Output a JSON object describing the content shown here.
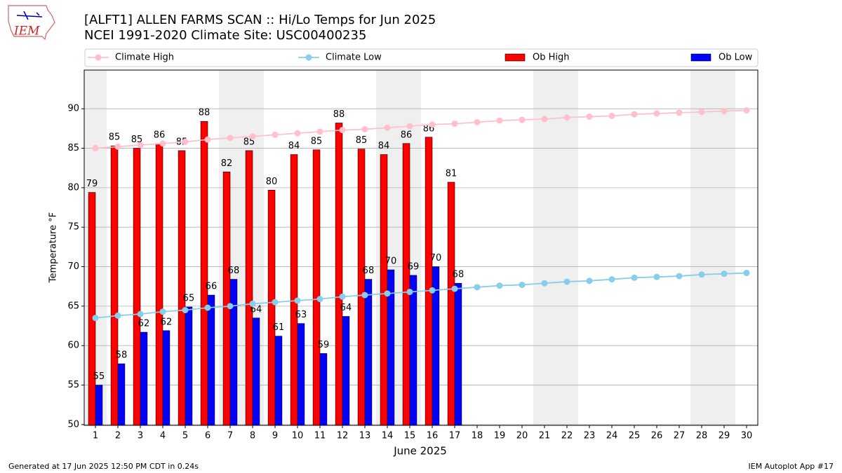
{
  "logo_text": "IEM",
  "footer_left": "Generated at 17 Jun 2025 12:50 PM CDT in 0.24s",
  "footer_right": "IEM Autoplot App #17",
  "chart_data": {
    "type": "bar_line",
    "title": "[ALFT1] ALLEN FARMS SCAN :: Hi/Lo Temps for Jun 2025",
    "subtitle": "NCEI 1991-2020 Climate Site: USC00400235",
    "xlabel": "June 2025",
    "ylabel": "Temperature °F",
    "x": [
      1,
      2,
      3,
      4,
      5,
      6,
      7,
      8,
      9,
      10,
      11,
      12,
      13,
      14,
      15,
      16,
      17,
      18,
      19,
      20,
      21,
      22,
      23,
      24,
      25,
      26,
      27,
      28,
      29,
      30
    ],
    "xlim": [
      0.5,
      30.5
    ],
    "xticks": [
      1,
      2,
      3,
      4,
      5,
      6,
      7,
      8,
      9,
      10,
      11,
      12,
      13,
      14,
      15,
      16,
      17,
      18,
      19,
      20,
      21,
      22,
      23,
      24,
      25,
      26,
      27,
      28,
      29,
      30
    ],
    "ylim": [
      49.9,
      94.9
    ],
    "yticks": [
      50,
      55,
      60,
      65,
      70,
      75,
      80,
      85,
      90
    ],
    "grid": true,
    "shaded_days": [
      1,
      7,
      8,
      14,
      15,
      21,
      22,
      28,
      29
    ],
    "shade_color": "#efefef",
    "series": [
      {
        "name": "Climate High",
        "kind": "line",
        "color": "pink",
        "values": [
          85.0,
          85.2,
          85.4,
          85.6,
          85.8,
          86.1,
          86.3,
          86.5,
          86.7,
          86.9,
          87.1,
          87.3,
          87.4,
          87.6,
          87.8,
          88.0,
          88.1,
          88.3,
          88.5,
          88.6,
          88.7,
          88.9,
          89.0,
          89.1,
          89.3,
          89.4,
          89.5,
          89.6,
          89.7,
          89.8
        ]
      },
      {
        "name": "Climate Low",
        "kind": "line",
        "color": "skyblue",
        "values": [
          63.5,
          63.8,
          64.0,
          64.3,
          64.5,
          64.8,
          65.0,
          65.3,
          65.5,
          65.7,
          65.9,
          66.2,
          66.4,
          66.6,
          66.8,
          67.0,
          67.2,
          67.4,
          67.6,
          67.7,
          67.9,
          68.1,
          68.2,
          68.4,
          68.6,
          68.7,
          68.8,
          69.0,
          69.1,
          69.2
        ]
      },
      {
        "name": "Ob High",
        "kind": "bar",
        "offset": -1,
        "color": "#ff0000",
        "values": [
          79.4,
          85.3,
          85.0,
          85.6,
          84.7,
          88.4,
          82.0,
          84.7,
          79.7,
          84.2,
          84.8,
          88.2,
          84.9,
          84.2,
          85.6,
          86.4,
          80.7,
          null,
          null,
          null,
          null,
          null,
          null,
          null,
          null,
          null,
          null,
          null,
          null,
          null
        ],
        "value_labels": [
          "79",
          "85",
          "85",
          "86",
          "85",
          "88",
          "82",
          "85",
          "80",
          "84",
          "85",
          "88",
          "85",
          "84",
          "86",
          "86",
          "81",
          null,
          null,
          null,
          null,
          null,
          null,
          null,
          null,
          null,
          null,
          null,
          null,
          null
        ]
      },
      {
        "name": "Ob Low",
        "kind": "bar",
        "offset": 0,
        "color": "#0000ff",
        "values": [
          55.0,
          57.7,
          61.7,
          61.9,
          64.9,
          66.4,
          68.4,
          63.5,
          61.2,
          62.8,
          59.0,
          63.7,
          68.4,
          69.6,
          68.9,
          70.0,
          67.9,
          null,
          null,
          null,
          null,
          null,
          null,
          null,
          null,
          null,
          null,
          null,
          null,
          null
        ],
        "value_labels": [
          "55",
          "58",
          "62",
          "62",
          "65",
          "66",
          "68",
          "64",
          "61",
          "63",
          "59",
          "64",
          "68",
          "70",
          "69",
          "70",
          "68",
          null,
          null,
          null,
          null,
          null,
          null,
          null,
          null,
          null,
          null,
          null,
          null,
          null
        ]
      }
    ]
  }
}
